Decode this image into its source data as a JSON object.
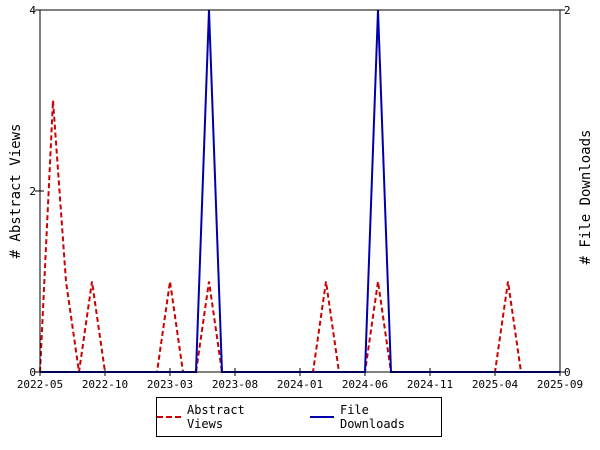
{
  "chart_data": {
    "type": "line",
    "x_tick_labels": [
      "2022-05",
      "2022-10",
      "2023-03",
      "2023-08",
      "2024-01",
      "2024-06",
      "2024-11",
      "2025-04",
      "2025-09"
    ],
    "y_left": {
      "label": "# Abstract Views",
      "ylim": [
        0,
        4
      ],
      "ticks": [
        "0",
        "2",
        "4"
      ]
    },
    "y_right": {
      "label": "# File Downloads",
      "ylim": [
        0,
        2
      ],
      "ticks": [
        "0",
        "2"
      ]
    },
    "grid": false,
    "legend_position": "bottom",
    "series": [
      {
        "name": "Abstract Views",
        "axis": "left",
        "color": "#cc0000",
        "style": "dashed",
        "x": [
          "2022-05",
          "2022-06",
          "2022-07",
          "2022-08",
          "2022-09",
          "2022-10",
          "2022-11",
          "2022-12",
          "2023-01",
          "2023-02",
          "2023-03",
          "2023-04",
          "2023-05",
          "2023-06",
          "2023-07",
          "2023-08",
          "2023-09",
          "2023-10",
          "2023-11",
          "2023-12",
          "2024-01",
          "2024-02",
          "2024-03",
          "2024-04",
          "2024-05",
          "2024-06",
          "2024-07",
          "2024-08",
          "2024-09",
          "2024-10",
          "2024-11",
          "2024-12",
          "2025-01",
          "2025-02",
          "2025-03",
          "2025-04",
          "2025-05",
          "2025-06",
          "2025-07",
          "2025-08",
          "2025-09"
        ],
        "values": [
          0,
          3,
          1,
          0,
          1,
          0,
          0,
          0,
          0,
          0,
          1,
          0,
          0,
          1,
          0,
          0,
          0,
          0,
          0,
          0,
          0,
          0,
          1,
          0,
          0,
          0,
          1,
          0,
          0,
          0,
          0,
          0,
          0,
          0,
          0,
          0,
          1,
          0,
          0,
          0,
          0
        ]
      },
      {
        "name": "File Downloads",
        "axis": "right",
        "color": "#0000aa",
        "style": "solid",
        "x": [
          "2022-05",
          "2022-06",
          "2022-07",
          "2022-08",
          "2022-09",
          "2022-10",
          "2022-11",
          "2022-12",
          "2023-01",
          "2023-02",
          "2023-03",
          "2023-04",
          "2023-05",
          "2023-06",
          "2023-07",
          "2023-08",
          "2023-09",
          "2023-10",
          "2023-11",
          "2023-12",
          "2024-01",
          "2024-02",
          "2024-03",
          "2024-04",
          "2024-05",
          "2024-06",
          "2024-07",
          "2024-08",
          "2024-09",
          "2024-10",
          "2024-11",
          "2024-12",
          "2025-01",
          "2025-02",
          "2025-03",
          "2025-04",
          "2025-05",
          "2025-06",
          "2025-07",
          "2025-08",
          "2025-09"
        ],
        "values": [
          0,
          0,
          0,
          0,
          0,
          0,
          0,
          0,
          0,
          0,
          0,
          0,
          0,
          2,
          0,
          0,
          0,
          0,
          0,
          0,
          0,
          0,
          0,
          0,
          0,
          0,
          2,
          0,
          0,
          0,
          0,
          0,
          0,
          0,
          0,
          0,
          0,
          0,
          0,
          0,
          0
        ]
      }
    ]
  }
}
